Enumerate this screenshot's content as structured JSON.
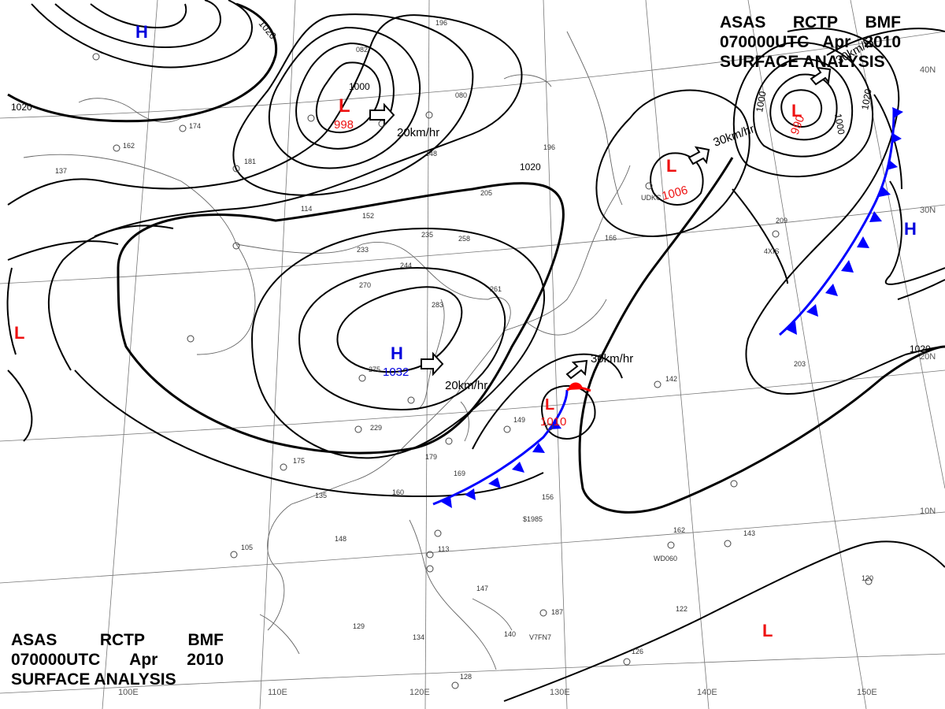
{
  "header_top_right": {
    "agency": "ASAS",
    "station": "RCTP",
    "office": "BMF",
    "valid_time": "070000UTC",
    "month": "Apr",
    "year": "2010",
    "product": "SURFACE ANALYSIS"
  },
  "header_bottom_left": {
    "agency": "ASAS",
    "station": "RCTP",
    "office": "BMF",
    "valid_time": "070000UTC",
    "month": "Apr",
    "year": "2010",
    "product": "SURFACE ANALYSIS"
  },
  "colors": {
    "high": "#0000dd",
    "low": "#ee1111",
    "cold_front": "#0000ff",
    "warm_front": "#ff0000",
    "isobar": "#000000",
    "coastline": "#555555",
    "grid": "#777777"
  },
  "longitude_labels": [
    "100E",
    "110E",
    "120E",
    "130E",
    "140E",
    "150E"
  ],
  "latitude_labels": [
    "40N",
    "30N",
    "20N",
    "10N"
  ],
  "pressure_centers": [
    {
      "type": "H",
      "value": ""
    },
    {
      "type": "L",
      "value": "998"
    },
    {
      "type": "L",
      "value": "1006"
    },
    {
      "type": "L",
      "value": "990"
    },
    {
      "type": "H",
      "value": "1032"
    },
    {
      "type": "L",
      "value": "1010"
    },
    {
      "type": "L",
      "value": ""
    },
    {
      "type": "L",
      "value": ""
    },
    {
      "type": "H",
      "value": ""
    }
  ],
  "isobar_labels": [
    "1020",
    "1020",
    "1000",
    "1020",
    "1000",
    "1000",
    "1020",
    "1020"
  ],
  "motion_labels": [
    "20km/hr",
    "30km/hr",
    "30km/hr",
    "20km/hr",
    "30km/hr"
  ],
  "station_codes": [
    "UDKC",
    "4XIS",
    "WD060",
    "V7FN7",
    "$1985"
  ],
  "station_values": [
    "196",
    "082",
    "080",
    "174",
    "162",
    "137",
    "181",
    "114",
    "152",
    "148",
    "196",
    "235",
    "258",
    "233",
    "244",
    "270",
    "283",
    "261",
    "205",
    "166",
    "142",
    "209",
    "203",
    "275",
    "229",
    "179",
    "160",
    "175",
    "135",
    "148",
    "105",
    "113",
    "147",
    "156",
    "162",
    "143",
    "129",
    "134",
    "140",
    "126",
    "128",
    "120",
    "187",
    "122",
    "169",
    "149"
  ]
}
